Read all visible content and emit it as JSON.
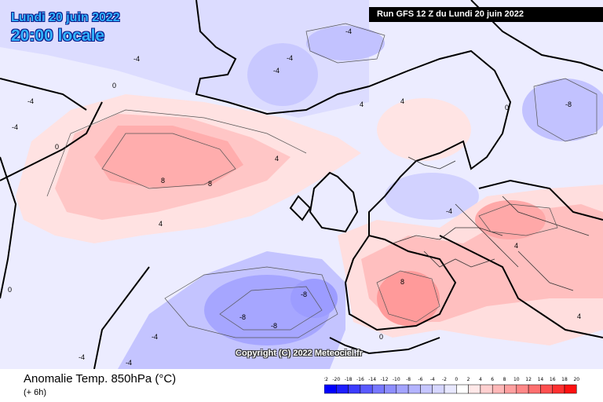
{
  "header": {
    "date": "Lundi 20 juin 2022",
    "time": "20:00 locale",
    "run": "Run GFS 12 Z du Lundi 20 juin 2022"
  },
  "map": {
    "copyright": "Copyright (C) 2022 Meteociel.fr",
    "contour_labels": [
      "-4",
      "-4",
      "-4",
      "-4",
      "-4",
      "0",
      "0",
      "4",
      "4",
      "-8",
      "8",
      "8",
      "4",
      "4",
      "8",
      "-8",
      "-8",
      "-8",
      "-4",
      "0",
      "4",
      "-4",
      "-4",
      "-4",
      "-4",
      "0",
      "0",
      "4"
    ]
  },
  "footer": {
    "title": "Anomalie Temp. 850hPa (°C)",
    "subtitle": "(+ 6h)"
  },
  "legend": {
    "labels": [
      "-22",
      "-20",
      "-18",
      "-16",
      "-14",
      "-12",
      "-10",
      "-8",
      "-6",
      "-4",
      "-2",
      "0",
      "2",
      "4",
      "6",
      "8",
      "10",
      "12",
      "14",
      "16",
      "18",
      "20"
    ],
    "colors": [
      "#0000ff",
      "#1e1eff",
      "#3c3cff",
      "#5a5aff",
      "#7878ff",
      "#8e8eff",
      "#a4a4ff",
      "#b4b4ff",
      "#c6c6ff",
      "#d6d6ff",
      "#e8e8ff",
      "#ffffff",
      "#ffe8e8",
      "#ffd0d0",
      "#ffb8b8",
      "#ffa0a0",
      "#ff8888",
      "#ff7070",
      "#ff5050",
      "#ff3030",
      "#ff1010"
    ]
  }
}
